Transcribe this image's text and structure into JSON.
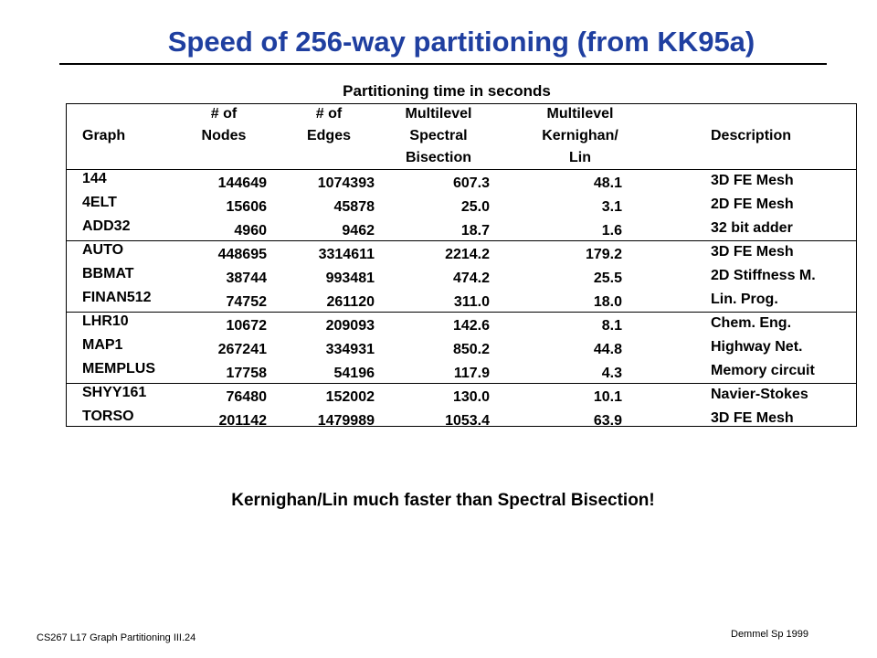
{
  "title": "Speed of 256-way partitioning (from KK95a)",
  "table_caption": "Partitioning time in seconds",
  "headers": {
    "graph": "Graph",
    "nodes_1": "# of",
    "nodes_2": "Nodes",
    "edges_1": "# of",
    "edges_2": "Edges",
    "spectral_1": "Multilevel",
    "spectral_2": "Spectral",
    "spectral_3": "Bisection",
    "kl_1": "Multilevel",
    "kl_2": "Kernighan/",
    "kl_3": "Lin",
    "description": "Description"
  },
  "rows": [
    {
      "graph": "144",
      "nodes": "144649",
      "edges": "1074393",
      "spectral": "607.3",
      "kl": "48.1",
      "description": "3D FE Mesh"
    },
    {
      "graph": "4ELT",
      "nodes": "15606",
      "edges": "45878",
      "spectral": "25.0",
      "kl": "3.1",
      "description": "2D FE Mesh"
    },
    {
      "graph": "ADD32",
      "nodes": "4960",
      "edges": "9462",
      "spectral": "18.7",
      "kl": "1.6",
      "description": "32 bit adder"
    },
    {
      "graph": "AUTO",
      "nodes": "448695",
      "edges": "3314611",
      "spectral": "2214.2",
      "kl": "179.2",
      "description": "3D FE Mesh"
    },
    {
      "graph": "BBMAT",
      "nodes": "38744",
      "edges": "993481",
      "spectral": "474.2",
      "kl": "25.5",
      "description": "2D Stiffness M."
    },
    {
      "graph": "FINAN512",
      "nodes": "74752",
      "edges": "261120",
      "spectral": "311.0",
      "kl": "18.0",
      "description": "Lin. Prog."
    },
    {
      "graph": "LHR10",
      "nodes": "10672",
      "edges": "209093",
      "spectral": "142.6",
      "kl": "8.1",
      "description": "Chem. Eng."
    },
    {
      "graph": "MAP1",
      "nodes": "267241",
      "edges": "334931",
      "spectral": "850.2",
      "kl": "44.8",
      "description": "Highway Net."
    },
    {
      "graph": "MEMPLUS",
      "nodes": "17758",
      "edges": "54196",
      "spectral": "117.9",
      "kl": "4.3",
      "description": "Memory circuit"
    },
    {
      "graph": "SHYY161",
      "nodes": "76480",
      "edges": "152002",
      "spectral": "130.0",
      "kl": "10.1",
      "description": "Navier-Stokes"
    },
    {
      "graph": "TORSO",
      "nodes": "201142",
      "edges": "1479989",
      "spectral": "1053.4",
      "kl": "63.9",
      "description": "3D FE Mesh"
    }
  ],
  "conclusion": "Kernighan/Lin much faster than Spectral Bisection!",
  "footer_left": "CS267  L17 Graph Partitioning III.24",
  "footer_right": "Demmel Sp 1999"
}
